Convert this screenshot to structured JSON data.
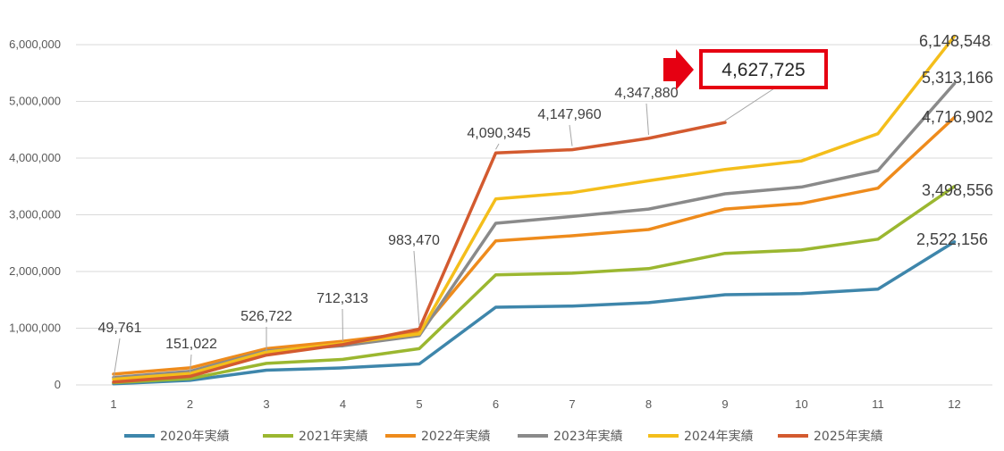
{
  "chart_data": {
    "type": "line",
    "x": [
      1,
      2,
      3,
      4,
      5,
      6,
      7,
      8,
      9,
      10,
      11,
      12
    ],
    "ylim": [
      0,
      6000000
    ],
    "yticks": [
      "0",
      "1,000,000",
      "2,000,000",
      "3,000,000",
      "4,000,000",
      "5,000,000",
      "6,000,000"
    ],
    "grid": true,
    "legend_position": "bottom",
    "series": [
      {
        "name": "2020年実績",
        "color": "#3E86AB",
        "values": [
          20000,
          80000,
          260000,
          300000,
          370000,
          1370000,
          1390000,
          1450000,
          1590000,
          1610000,
          1690000,
          2522156
        ]
      },
      {
        "name": "2021年実績",
        "color": "#9BB730",
        "values": [
          40000,
          110000,
          380000,
          450000,
          640000,
          1940000,
          1970000,
          2050000,
          2320000,
          2380000,
          2570000,
          3498556
        ]
      },
      {
        "name": "2022年実績",
        "color": "#EE8B1C",
        "values": [
          190000,
          300000,
          640000,
          770000,
          930000,
          2540000,
          2630000,
          2740000,
          3100000,
          3200000,
          3470000,
          4716902
        ]
      },
      {
        "name": "2023年実績",
        "color": "#8A8A8A",
        "values": [
          130000,
          240000,
          600000,
          690000,
          870000,
          2850000,
          2970000,
          3100000,
          3370000,
          3490000,
          3780000,
          5313166
        ]
      },
      {
        "name": "2024年実績",
        "color": "#F4BE1B",
        "values": [
          100000,
          200000,
          580000,
          730000,
          900000,
          3280000,
          3390000,
          3600000,
          3800000,
          3950000,
          4430000,
          6148548
        ]
      },
      {
        "name": "2025年実績",
        "color": "#D35A2F",
        "values": [
          49761,
          151022,
          526722,
          712313,
          983470,
          4090345,
          4147960,
          4347880,
          4627725,
          null,
          null,
          null
        ]
      }
    ],
    "annotations": {
      "s2025": [
        "49,761",
        "151,022",
        "526,722",
        "712,313",
        "983,470",
        "4,090,345",
        "4,147,960",
        "4,347,880"
      ],
      "highlight": "4,627,725",
      "end_labels": [
        "2,522,156",
        "3,498,556",
        "4,716,902",
        "5,313,166",
        "6,148,548"
      ]
    },
    "highlight_color": "#E60012"
  }
}
